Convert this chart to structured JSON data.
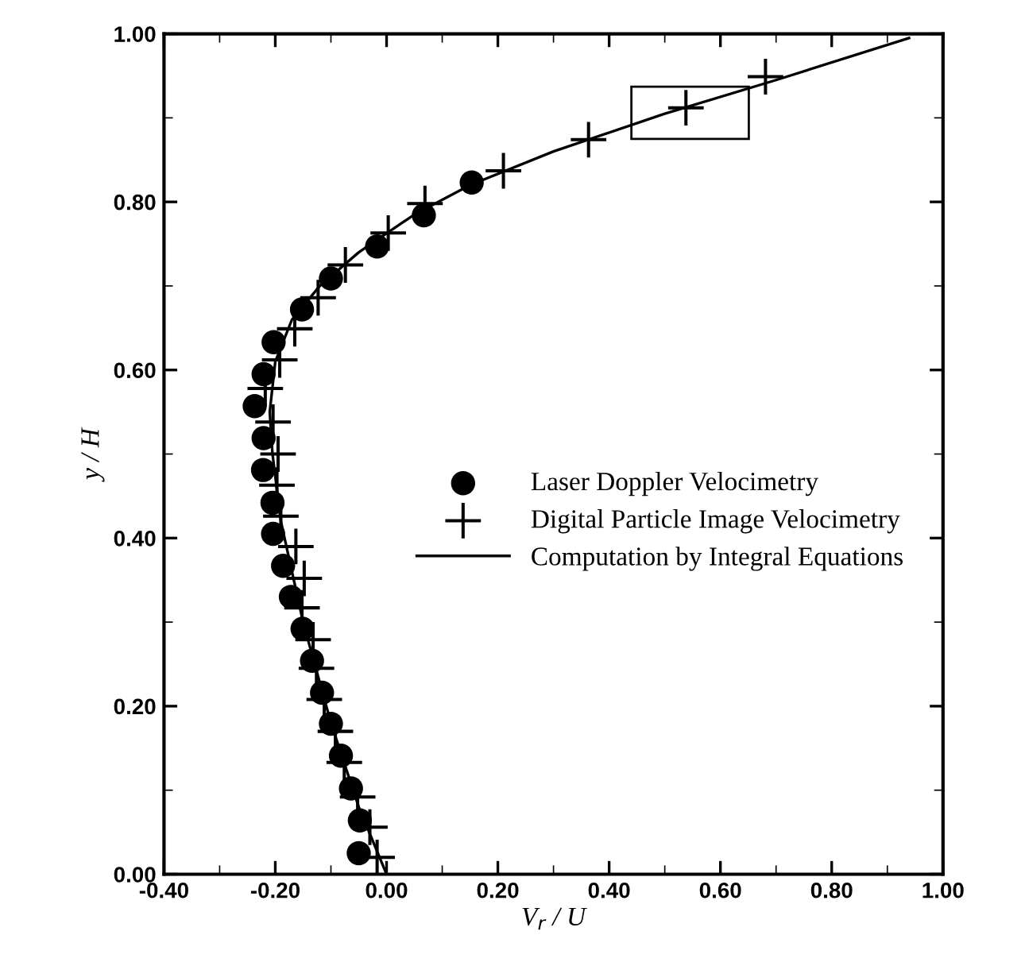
{
  "chart_data": {
    "type": "scatter",
    "xlabel": "V$_{r}$ / U",
    "ylabel": "y / H",
    "xlim": [
      -0.4,
      1.0
    ],
    "ylim": [
      0.0,
      1.0
    ],
    "xticks": [
      {
        "value": -0.4,
        "label": "-0.40"
      },
      {
        "value": -0.2,
        "label": "-0.20"
      },
      {
        "value": 0.0,
        "label": "0.00"
      },
      {
        "value": 0.2,
        "label": "0.20"
      },
      {
        "value": 0.4,
        "label": "0.40"
      },
      {
        "value": 0.6,
        "label": "0.60"
      },
      {
        "value": 0.8,
        "label": "0.80"
      },
      {
        "value": 1.0,
        "label": "1.00"
      }
    ],
    "yticks": [
      {
        "value": 0.0,
        "label": "0.00"
      },
      {
        "value": 0.2,
        "label": "0.20"
      },
      {
        "value": 0.4,
        "label": "0.40"
      },
      {
        "value": 0.6,
        "label": "0.60"
      },
      {
        "value": 0.8,
        "label": "0.80"
      },
      {
        "value": 1.0,
        "label": "1.00"
      }
    ],
    "grid": false,
    "legend": "right",
    "series": [
      {
        "name": "Laser Doppler Velocimetry",
        "marker": "circle",
        "color": "#000000",
        "x": [
          -0.05,
          -0.048,
          -0.064,
          -0.082,
          -0.1,
          -0.116,
          -0.134,
          -0.151,
          -0.172,
          -0.186,
          -0.204,
          -0.205,
          -0.222,
          -0.221,
          -0.237,
          -0.221,
          -0.203,
          -0.152,
          -0.1,
          -0.017,
          0.067,
          0.153
        ],
        "values": [
          0.025,
          0.064,
          0.102,
          0.141,
          0.179,
          0.216,
          0.254,
          0.292,
          0.33,
          0.367,
          0.405,
          0.442,
          0.481,
          0.519,
          0.557,
          0.595,
          0.633,
          0.672,
          0.709,
          0.747,
          0.784,
          0.823
        ]
      },
      {
        "name": "Digital Particle Image Velocimetry",
        "marker": "cross",
        "color": "#000000",
        "x": [
          -0.017,
          -0.03,
          -0.052,
          -0.076,
          -0.092,
          -0.112,
          -0.126,
          -0.132,
          -0.152,
          -0.148,
          -0.163,
          -0.19,
          -0.197,
          -0.195,
          -0.204,
          -0.218,
          -0.192,
          -0.165,
          -0.123,
          -0.074,
          0.003,
          0.069,
          0.21,
          0.363,
          0.538,
          0.681
        ],
        "values": [
          0.02,
          0.056,
          0.092,
          0.133,
          0.17,
          0.208,
          0.245,
          0.279,
          0.317,
          0.352,
          0.39,
          0.426,
          0.463,
          0.5,
          0.538,
          0.578,
          0.612,
          0.649,
          0.686,
          0.725,
          0.763,
          0.798,
          0.837,
          0.874,
          0.912,
          0.949
        ]
      },
      {
        "name": "Computation by Integral Equations",
        "type": "line",
        "marker": "none",
        "line_style": "solid",
        "color": "#000000",
        "x": [
          0.0,
          -0.05,
          -0.1,
          -0.15,
          -0.19,
          -0.205,
          -0.21,
          -0.2,
          -0.17,
          -0.12,
          -0.05,
          0.05,
          0.15,
          0.3,
          0.5,
          0.7,
          0.939
        ],
        "values": [
          0.0,
          0.08,
          0.18,
          0.3,
          0.42,
          0.5,
          0.55,
          0.61,
          0.66,
          0.7,
          0.74,
          0.785,
          0.82,
          0.86,
          0.905,
          0.945,
          0.995
        ]
      }
    ]
  }
}
